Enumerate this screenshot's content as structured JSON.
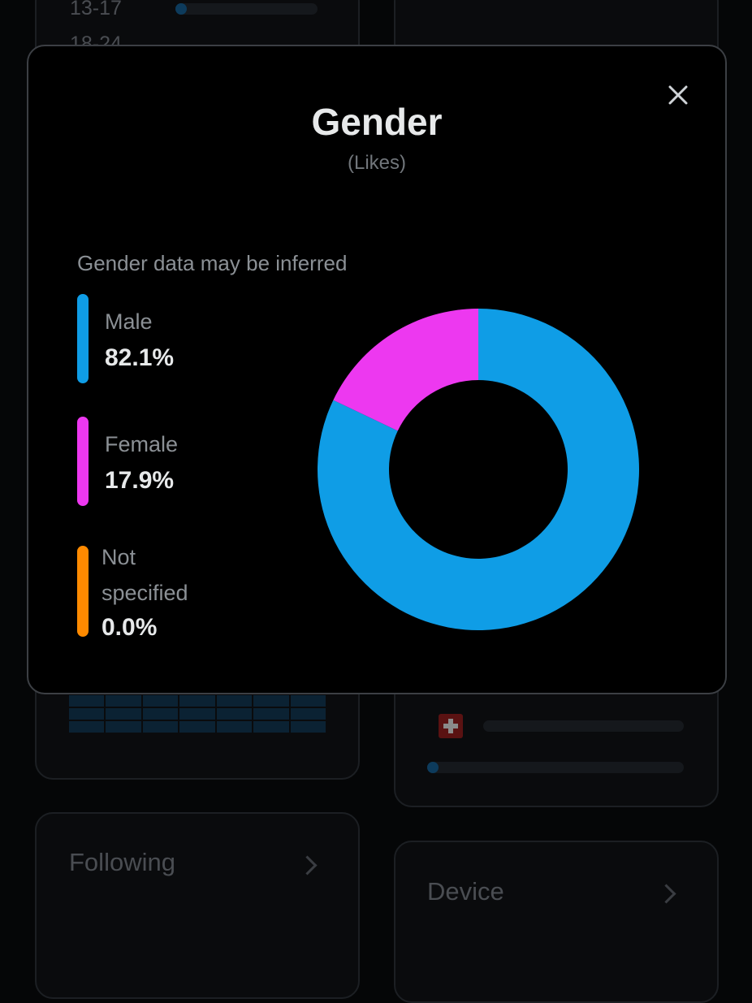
{
  "background": {
    "age_label_1": "13-17",
    "age_label_2": "18-24",
    "age_bar_1_fraction": 0.05,
    "following_card": {
      "label": "Following"
    },
    "device_card": {
      "label": "Device"
    },
    "country_bar_1_fraction": 0.0,
    "country_bar_2_fraction": 0.02
  },
  "modal": {
    "title": "Gender",
    "subtitle": "(Likes)",
    "note": "Gender data may be inferred",
    "close_icon": "close-icon"
  },
  "legend": [
    {
      "label": "Male",
      "value": "82.1%",
      "color": "#0f9de6"
    },
    {
      "label": "Female",
      "value": "17.9%",
      "color": "#ed38f0"
    },
    {
      "label_line1": "Not",
      "label_line2": "specified",
      "value": "0.0%",
      "color": "#ff8a00"
    }
  ],
  "chart_data": {
    "type": "pie",
    "donut": true,
    "categories": [
      "Male",
      "Female",
      "Not specified"
    ],
    "values": [
      82.1,
      17.9,
      0.0
    ],
    "colors": [
      "#0f9de6",
      "#ed38f0",
      "#ff8a00"
    ],
    "title": "Gender",
    "subtitle": "(Likes)"
  }
}
